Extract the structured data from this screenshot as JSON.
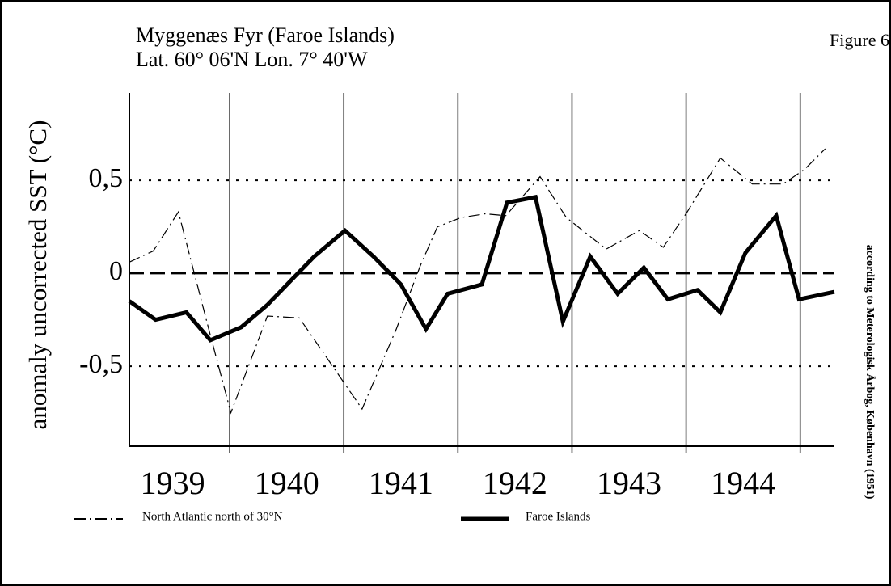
{
  "chart_data": {
    "type": "line",
    "figure_label": "Figure 6",
    "title": "Myggenæs Fyr (Faroe Islands)",
    "subtitle": "Lat. 60° 06'N   Lon. 7° 40'W",
    "y_label": "anomaly uncorrected SST (°C)",
    "source": "according to Meterologisk Årbog, København (1951)",
    "xlim": [
      1939.12,
      1945.3
    ],
    "xticks": [
      {
        "value": 1939.5,
        "label": "1939"
      },
      {
        "value": 1940.5,
        "label": "1940"
      },
      {
        "value": 1941.5,
        "label": "1941"
      },
      {
        "value": 1942.5,
        "label": "1942"
      },
      {
        "value": 1943.5,
        "label": "1943"
      },
      {
        "value": 1944.5,
        "label": "1944"
      }
    ],
    "year_lines": [
      1940,
      1941,
      1942,
      1943,
      1944,
      1945
    ],
    "ylim": [
      -0.93,
      0.97
    ],
    "yticks": [
      {
        "value": 0.5,
        "label": "0,5"
      },
      0,
      {
        "value": -0.5,
        "label": "-0,5"
      }
    ],
    "grid": true,
    "series": [
      {
        "name": "North Atlantic north of 30°N",
        "color": "#000000",
        "style": "dashdot",
        "x": [
          1939.12,
          1939.33,
          1939.55,
          1939.82,
          1940.01,
          1940.33,
          1940.61,
          1941.16,
          1941.46,
          1941.67,
          1941.82,
          1942.03,
          1942.24,
          1942.42,
          1942.72,
          1942.95,
          1943.3,
          1943.59,
          1943.8,
          1944.01,
          1944.3,
          1944.58,
          1944.85,
          1945.04,
          1945.22
        ],
        "values": [
          0.06,
          0.12,
          0.33,
          -0.31,
          -0.75,
          -0.23,
          -0.24,
          -0.73,
          -0.3,
          0.04,
          0.25,
          0.3,
          0.32,
          0.31,
          0.52,
          0.3,
          0.13,
          0.23,
          0.14,
          0.33,
          0.62,
          0.48,
          0.48,
          0.56,
          0.67
        ]
      },
      {
        "name": "Faroe Islands",
        "color": "#000000",
        "style": "solid",
        "x": [
          1939.12,
          1939.35,
          1939.62,
          1939.83,
          1940.1,
          1940.33,
          1940.55,
          1940.74,
          1941.01,
          1941.26,
          1941.5,
          1941.72,
          1941.91,
          1942.21,
          1942.43,
          1942.68,
          1942.92,
          1943.16,
          1943.4,
          1943.63,
          1943.84,
          1944.1,
          1944.3,
          1944.52,
          1944.79,
          1944.99,
          1945.3
        ],
        "values": [
          -0.15,
          -0.25,
          -0.21,
          -0.36,
          -0.29,
          -0.17,
          -0.03,
          0.09,
          0.23,
          0.09,
          -0.06,
          -0.3,
          -0.11,
          -0.06,
          0.38,
          0.41,
          -0.26,
          0.09,
          -0.11,
          0.03,
          -0.14,
          -0.09,
          -0.21,
          0.11,
          0.31,
          -0.14,
          -0.1
        ]
      }
    ]
  }
}
